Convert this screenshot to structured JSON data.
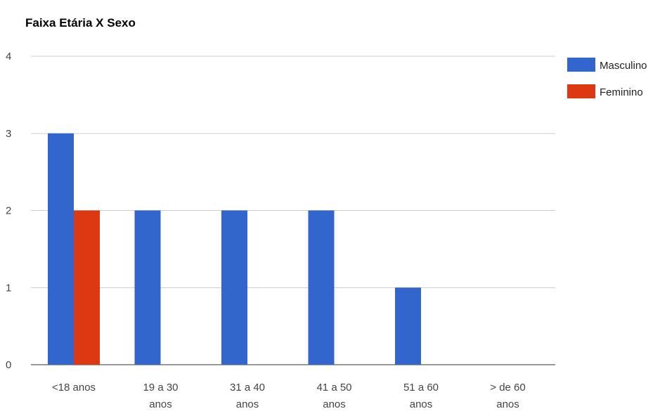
{
  "chart_data": {
    "type": "bar",
    "title": "Faixa Etária X Sexo",
    "xlabel": "",
    "ylabel": "",
    "categories": [
      [
        "<18 anos"
      ],
      [
        "19 a 30",
        "anos"
      ],
      [
        "31 a 40",
        "anos"
      ],
      [
        "41 a 50",
        "anos"
      ],
      [
        "51 a 60",
        "anos"
      ],
      [
        "> de 60",
        "anos"
      ]
    ],
    "series": [
      {
        "name": "Masculino",
        "color": "#3366cc",
        "values": [
          3,
          2,
          2,
          2,
          1,
          0
        ]
      },
      {
        "name": "Feminino",
        "color": "#dc3912",
        "values": [
          2,
          0,
          0,
          0,
          0,
          0
        ]
      }
    ],
    "ylim": [
      0,
      4
    ],
    "yticks": [
      "0",
      "1",
      "2",
      "3",
      "4"
    ],
    "grid": true,
    "legend_position": "right"
  }
}
